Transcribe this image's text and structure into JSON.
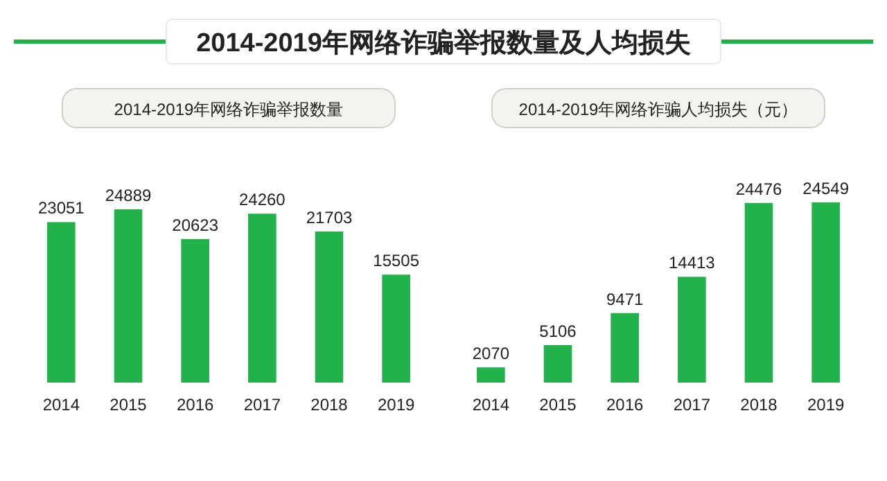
{
  "chart_data": [
    {
      "type": "other",
      "title": "2014-2019年网络诈骗举报数量及人均损失"
    },
    {
      "type": "bar",
      "title": "2014-2019年网络诈骗举报数量",
      "categories": [
        "2014",
        "2015",
        "2016",
        "2017",
        "2018",
        "2019"
      ],
      "values": [
        23051,
        24889,
        20623,
        24260,
        21703,
        15505
      ],
      "color": "#22b24c",
      "data_labels": true
    },
    {
      "type": "bar",
      "title": "2014-2019年网络诈骗人均损失（元）",
      "categories": [
        "2014",
        "2015",
        "2016",
        "2017",
        "2018",
        "2019"
      ],
      "values": [
        2070,
        5106,
        9471,
        14413,
        24476,
        24549
      ],
      "color": "#22b24c",
      "data_labels": true
    }
  ]
}
